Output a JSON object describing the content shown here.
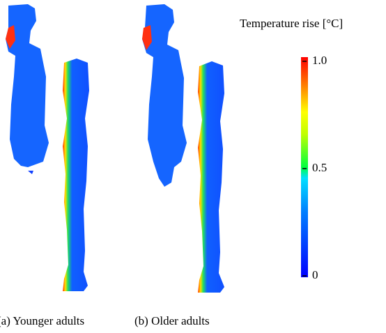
{
  "colorbar": {
    "title": "Temperature rise [°C]",
    "lim": [
      0,
      1
    ],
    "ticks": [
      0,
      0.5,
      {
        "value": 1,
        "label": "1.0"
      }
    ]
  },
  "panels": [
    {
      "caption": "(a) Younger adults"
    },
    {
      "caption": "(b) Older adults"
    }
  ]
}
